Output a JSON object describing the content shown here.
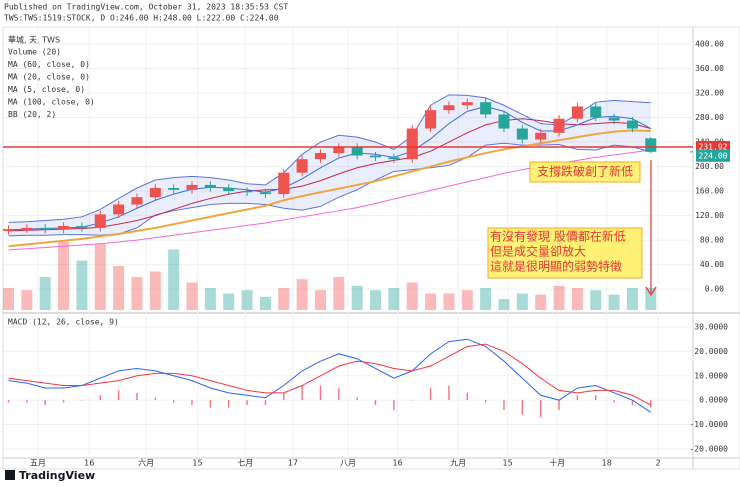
{
  "header": {
    "published": "Published on TradingView.com, October 31, 2023 18:35:53 CST",
    "symbol": "TWS:TWS:1519:STOCK, D O:246.00 H:248.00 L:222.00 C:224.00",
    "legend_title": "華城, 天, TWS"
  },
  "chart_data": {
    "type": "candlestick",
    "xlim": [
      -0.3,
      37.3
    ],
    "xticks": [
      {
        "value": 1.6,
        "label": "五月"
      },
      {
        "value": 4.4,
        "label": "16"
      },
      {
        "value": 7.5,
        "label": "六月"
      },
      {
        "value": 10.3,
        "label": "15"
      },
      {
        "value": 12.9,
        "label": "七月"
      },
      {
        "value": 15.5,
        "label": "17"
      },
      {
        "value": 18.5,
        "label": "八月"
      },
      {
        "value": 21.2,
        "label": "16"
      },
      {
        "value": 24.5,
        "label": "九月"
      },
      {
        "value": 27.2,
        "label": "15"
      },
      {
        "value": 29.9,
        "label": "十月"
      },
      {
        "value": 32.6,
        "label": "18"
      },
      {
        "value": 35.4,
        "label": "2"
      }
    ],
    "ylim": [
      -34,
      426
    ],
    "yticks": [
      {
        "value": 400,
        "label": "400.00"
      },
      {
        "value": 360,
        "label": "360.00"
      },
      {
        "value": 320,
        "label": "320.00"
      },
      {
        "value": 280,
        "label": "280.00"
      },
      {
        "value": 240,
        "label": "240.00"
      },
      {
        "value": 200,
        "label": "200.00"
      },
      {
        "value": 160,
        "label": "160.00"
      },
      {
        "value": 120,
        "label": "120.00"
      },
      {
        "value": 80,
        "label": "80.00"
      },
      {
        "value": 40,
        "label": "40.00"
      },
      {
        "value": 0,
        "label": "0.00"
      }
    ],
    "grid": true,
    "up_color": "#ef5350",
    "down_color": "#26a69a",
    "open": [
      95,
      98,
      100,
      97,
      103,
      100,
      122,
      138,
      150,
      165,
      162,
      170,
      165,
      160,
      158,
      155,
      190,
      212,
      222,
      232,
      218,
      215,
      212,
      262,
      292,
      300,
      305,
      285,
      262,
      244,
      255,
      278,
      298,
      280,
      275,
      246
    ],
    "high": [
      104,
      106,
      106,
      109,
      109,
      128,
      144,
      156,
      171,
      171,
      176,
      176,
      171,
      166,
      164,
      196,
      218,
      228,
      238,
      238,
      224,
      221,
      268,
      298,
      306,
      311,
      311,
      291,
      268,
      261,
      284,
      304,
      304,
      286,
      281,
      248
    ],
    "low": [
      89,
      92,
      91,
      91,
      94,
      94,
      116,
      132,
      144,
      156,
      156,
      159,
      154,
      152,
      149,
      149,
      184,
      206,
      216,
      212,
      209,
      206,
      206,
      256,
      286,
      294,
      279,
      256,
      238,
      238,
      249,
      272,
      274,
      269,
      256,
      222
    ],
    "close": [
      98,
      100,
      97,
      103,
      100,
      122,
      138,
      150,
      165,
      162,
      170,
      165,
      160,
      158,
      155,
      190,
      212,
      222,
      232,
      218,
      215,
      212,
      262,
      292,
      300,
      305,
      285,
      262,
      244,
      255,
      278,
      298,
      280,
      275,
      262,
      224
    ],
    "overlays": [
      {
        "name": "MA (60, close, 0)",
        "color": "#f0a640",
        "width": 2,
        "values": [
          70,
          73,
          76,
          79,
          82,
          86,
          90,
          95,
          100,
          106,
          112,
          118,
          124,
          130,
          136,
          145,
          152,
          158,
          164,
          170,
          176,
          184,
          192,
          200,
          208,
          215,
          222,
          228,
          233,
          238,
          243,
          248,
          253,
          257,
          259,
          258
        ]
      },
      {
        "name": "MA (20, close, 0)",
        "color": "#c62848",
        "width": 1,
        "values": [
          95,
          96,
          97,
          98,
          99,
          101,
          106,
          112,
          120,
          130,
          140,
          148,
          155,
          160,
          162,
          163,
          168,
          177,
          188,
          198,
          205,
          210,
          215,
          225,
          240,
          255,
          268,
          275,
          278,
          275,
          270,
          268,
          270,
          272,
          270,
          262
        ]
      },
      {
        "name": "MA (5, close, 0)",
        "color": "#3f6fd8",
        "width": 1,
        "values": [
          97,
          98,
          99,
          100,
          101,
          108,
          118,
          132,
          145,
          155,
          163,
          166,
          165,
          162,
          158,
          165,
          180,
          198,
          214,
          222,
          220,
          215,
          225,
          245,
          270,
          290,
          298,
          290,
          272,
          258,
          258,
          268,
          280,
          282,
          278,
          262
        ]
      },
      {
        "name": "MA (100, close, 0)",
        "color": "#ee6ad8",
        "width": 1,
        "values": [
          64,
          66,
          68,
          70,
          72,
          74,
          77,
          80,
          84,
          88,
          92,
          96,
          100,
          104,
          108,
          113,
          118,
          123,
          128,
          133,
          140,
          147,
          154,
          161,
          168,
          175,
          182,
          189,
          195,
          200,
          205,
          210,
          215,
          219,
          223,
          227
        ]
      }
    ],
    "bb": {
      "name": "BB (20, 2)",
      "color": "#5b74e0",
      "upper": [
        109,
        110,
        112,
        114,
        118,
        130,
        148,
        165,
        178,
        182,
        184,
        182,
        178,
        172,
        170,
        190,
        220,
        240,
        251,
        248,
        240,
        228,
        250,
        300,
        317,
        316,
        312,
        300,
        285,
        270,
        268,
        285,
        305,
        308,
        306,
        304
      ],
      "lower": [
        87,
        88,
        88,
        89,
        89,
        88,
        90,
        100,
        121,
        128,
        133,
        138,
        140,
        140,
        138,
        132,
        129,
        135,
        150,
        162,
        178,
        192,
        195,
        198,
        202,
        215,
        235,
        238,
        235,
        235,
        236,
        228,
        227,
        235,
        232,
        224
      ]
    },
    "volume": {
      "name": "Volume (20)",
      "vlim": [
        0,
        100
      ],
      "values": [
        20,
        18,
        30,
        62,
        45,
        60,
        40,
        30,
        35,
        55,
        25,
        20,
        15,
        18,
        12,
        20,
        28,
        18,
        30,
        22,
        18,
        20,
        25,
        15,
        15,
        18,
        20,
        10,
        15,
        14,
        22,
        20,
        18,
        14,
        20,
        20
      ]
    },
    "hline": {
      "value": 231.92,
      "label": "231.92",
      "color": "#e53935"
    },
    "last": {
      "value": 224,
      "label": "224.00",
      "color": "#26a69a"
    },
    "annotations": [
      {
        "text": "支撐跌破創了新低"
      },
      {
        "lines": [
          "有沒有發現 股價都在新低",
          "但是成交量卻放大",
          "這就是很明顯的弱勢特徵"
        ]
      }
    ],
    "macd": {
      "name": "MACD (12, 26, close, 9)",
      "ylim": [
        -22.5,
        33.7
      ],
      "yticks": [
        {
          "value": 30,
          "label": "30.0000"
        },
        {
          "value": 20,
          "label": "20.0000"
        },
        {
          "value": 10,
          "label": "10.0000"
        },
        {
          "value": 0,
          "label": "0.0000"
        },
        {
          "value": -10,
          "label": "-10.0000"
        },
        {
          "value": -20,
          "label": "-20.0000"
        }
      ],
      "macd_color": "#2962ff",
      "signal_color": "#f23645",
      "hist_color": "#f23645",
      "macd": [
        8,
        7,
        5,
        5,
        6,
        9,
        12,
        13,
        12,
        10,
        8,
        5,
        3,
        2,
        1,
        6,
        12,
        16,
        19,
        17,
        13,
        9,
        12,
        19,
        24,
        25,
        22,
        16,
        9,
        2,
        0,
        5,
        6,
        3,
        0,
        -5
      ],
      "signal": [
        9,
        8,
        7,
        6,
        6,
        7,
        8,
        10,
        11,
        11,
        10,
        8,
        6,
        4,
        3,
        3,
        6,
        10,
        14,
        16,
        15,
        13,
        12,
        14,
        18,
        22,
        23,
        20,
        15,
        9,
        4,
        3,
        4,
        4,
        2,
        -2
      ],
      "hist": [
        -1,
        -1,
        -2,
        -1,
        0,
        2,
        4,
        3,
        1,
        -1,
        -2,
        -3,
        -3,
        -2,
        -2,
        3,
        6,
        6,
        5,
        1,
        -2,
        -4,
        0,
        5,
        6,
        3,
        -1,
        -4,
        -6,
        -7,
        -4,
        2,
        2,
        -1,
        -2,
        -3
      ]
    }
  },
  "footer": {
    "brand": "TradingView"
  }
}
